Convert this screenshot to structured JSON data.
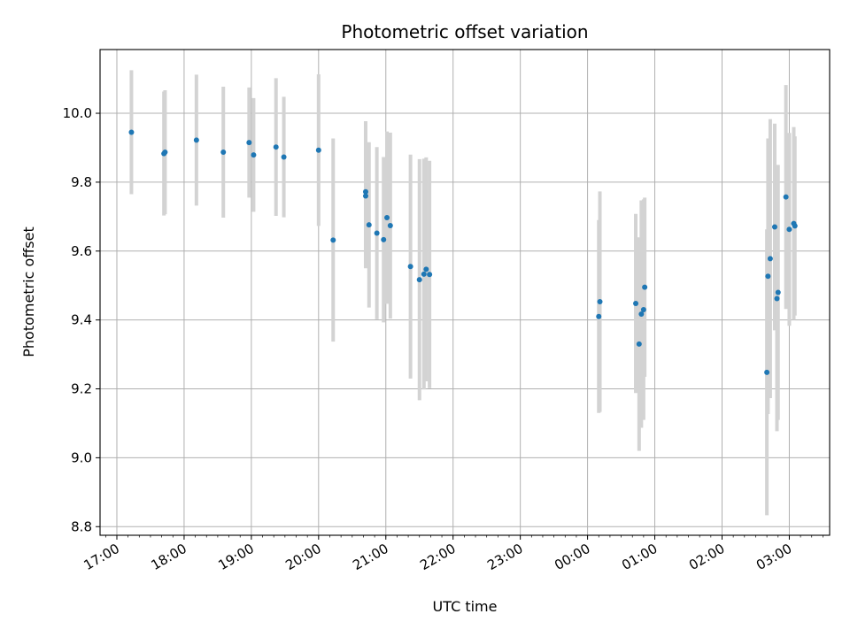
{
  "chart_data": {
    "type": "scatter",
    "title": "Photometric offset variation",
    "xlabel": "UTC time",
    "ylabel": "Photometric offset",
    "x_tick_labels": [
      "17:00",
      "18:00",
      "19:00",
      "20:00",
      "21:00",
      "22:00",
      "23:00",
      "00:00",
      "01:00",
      "02:00",
      "03:00"
    ],
    "y_ticks": [
      8.8,
      9.0,
      9.2,
      9.4,
      9.6,
      9.8,
      10.0
    ],
    "y_tick_labels": [
      "8.8",
      "9.0",
      "9.2",
      "9.4",
      "9.6",
      "9.8",
      "10.0"
    ],
    "xlim_hours": [
      16.75,
      27.6
    ],
    "ylim": [
      8.775,
      10.185
    ],
    "grid": true,
    "colors": {
      "point": "#1f77b4",
      "errorbar": "#d3d3d3",
      "grid": "#b0b0b0"
    },
    "points": [
      {
        "t": "17:13",
        "y": 9.945,
        "err": 0.18
      },
      {
        "t": "17:42",
        "y": 9.883,
        "err": 0.18
      },
      {
        "t": "17:43",
        "y": 9.887,
        "err": 0.18
      },
      {
        "t": "18:11",
        "y": 9.922,
        "err": 0.19
      },
      {
        "t": "18:35",
        "y": 9.887,
        "err": 0.19
      },
      {
        "t": "18:58",
        "y": 9.915,
        "err": 0.16
      },
      {
        "t": "19:02",
        "y": 9.879,
        "err": 0.165
      },
      {
        "t": "19:22",
        "y": 9.902,
        "err": 0.2
      },
      {
        "t": "19:29",
        "y": 9.873,
        "err": 0.175
      },
      {
        "t": "20:00",
        "y": 9.893,
        "err": 0.22
      },
      {
        "t": "20:13",
        "y": 9.632,
        "err": 0.295
      },
      {
        "t": "20:42",
        "y": 9.772,
        "err": 0.205
      },
      {
        "t": "20:42",
        "y": 9.76,
        "err": 0.21
      },
      {
        "t": "20:45",
        "y": 9.676,
        "err": 0.24
      },
      {
        "t": "20:52",
        "y": 9.652,
        "err": 0.25
      },
      {
        "t": "20:58",
        "y": 9.633,
        "err": 0.24
      },
      {
        "t": "21:01",
        "y": 9.697,
        "err": 0.25
      },
      {
        "t": "21:04",
        "y": 9.674,
        "err": 0.27
      },
      {
        "t": "21:22",
        "y": 9.555,
        "err": 0.325
      },
      {
        "t": "21:30",
        "y": 9.517,
        "err": 0.35
      },
      {
        "t": "21:34",
        "y": 9.533,
        "err": 0.335
      },
      {
        "t": "21:36",
        "y": 9.547,
        "err": 0.325
      },
      {
        "t": "21:39",
        "y": 9.532,
        "err": 0.33
      },
      {
        "t": "00:10",
        "y": 9.41,
        "err": 0.28
      },
      {
        "t": "00:11",
        "y": 9.453,
        "err": 0.32
      },
      {
        "t": "00:43",
        "y": 9.448,
        "err": 0.26
      },
      {
        "t": "00:46",
        "y": 9.33,
        "err": 0.31
      },
      {
        "t": "00:48",
        "y": 9.417,
        "err": 0.33
      },
      {
        "t": "00:50",
        "y": 9.43,
        "err": 0.32
      },
      {
        "t": "00:51",
        "y": 9.495,
        "err": 0.26
      },
      {
        "t": "02:40",
        "y": 9.248,
        "err": 0.415
      },
      {
        "t": "02:41",
        "y": 9.527,
        "err": 0.4
      },
      {
        "t": "02:43",
        "y": 9.578,
        "err": 0.405
      },
      {
        "t": "02:47",
        "y": 9.67,
        "err": 0.3
      },
      {
        "t": "02:49",
        "y": 9.462,
        "err": 0.385
      },
      {
        "t": "02:50",
        "y": 9.48,
        "err": 0.37
      },
      {
        "t": "02:57",
        "y": 9.757,
        "err": 0.325
      },
      {
        "t": "03:00",
        "y": 9.663,
        "err": 0.28
      },
      {
        "t": "03:04",
        "y": 9.68,
        "err": 0.28
      },
      {
        "t": "03:05",
        "y": 9.673,
        "err": 0.26
      }
    ]
  }
}
